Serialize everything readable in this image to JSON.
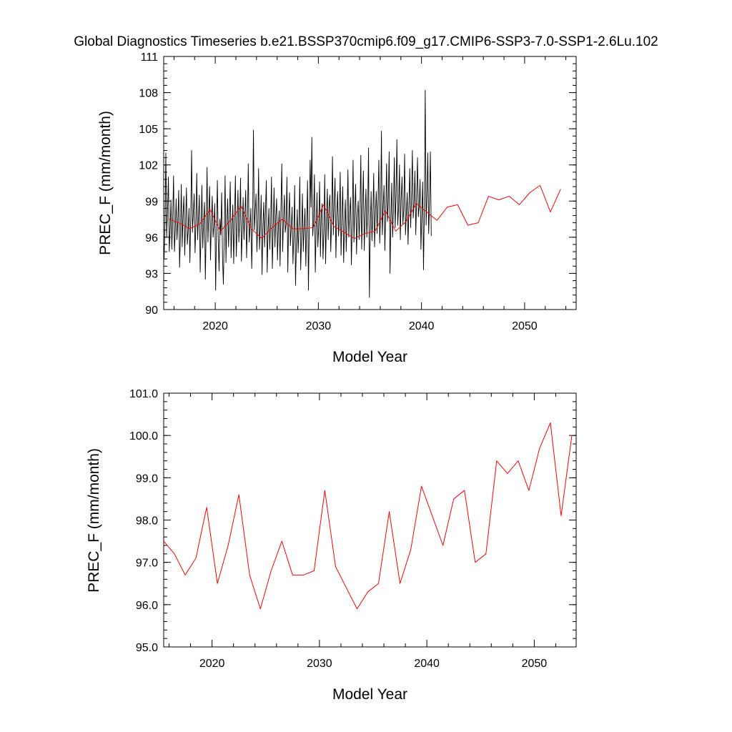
{
  "title": "Global Diagnostics Timeseries b.e21.BSSP370cmip6.f09_g17.CMIP6-SSP3-7.0-SSP1-2.6Lu.102",
  "colors": {
    "monthly": "#000000",
    "annual": "#ff0000"
  },
  "chart_data": [
    {
      "type": "line",
      "ylabel": "PREC_F (mm/month)",
      "xlabel": "Model Year",
      "xlim": [
        2015,
        2055
      ],
      "ylim": [
        90,
        111
      ],
      "xticks": [
        2020,
        2030,
        2040,
        2050
      ],
      "xtick_labels": [
        "2020",
        "2030",
        "2040",
        "2050"
      ],
      "yticks": [
        90,
        93,
        96,
        99,
        102,
        105,
        108,
        111
      ],
      "ytick_labels": [
        "90",
        "93",
        "96",
        "99",
        "102",
        "105",
        "108",
        "111"
      ],
      "series": [
        {
          "name": "monthly",
          "color": "#000000",
          "x_start": 2015.04,
          "x_step": 0.0833,
          "values": [
            94.2,
            97.1,
            103.0,
            96.0,
            98.3,
            101.0,
            94.8,
            96.6,
            99.1,
            95.0,
            97.7,
            101.1,
            94.8,
            96.5,
            99.2,
            95.8,
            97.4,
            99.9,
            93.5,
            96.2,
            100.4,
            95.2,
            97.8,
            99.4,
            94.5,
            97.3,
            100.1,
            95.4,
            96.6,
            98.4,
            93.9,
            97.6,
            103.2,
            96.4,
            98.0,
            99.6,
            94.7,
            97.1,
            101.3,
            95.8,
            97.6,
            99.5,
            93.1,
            96.5,
            100.3,
            95.1,
            97.3,
            98.9,
            92.5,
            96.8,
            101.8,
            95.6,
            98.0,
            100.2,
            94.1,
            97.2,
            99.4,
            96.0,
            97.0,
            98.8,
            91.6,
            96.5,
            100.7,
            95.8,
            93.2,
            97.5,
            96.2,
            99.7,
            94.3,
            92.1,
            96.3,
            101.1,
            93.9,
            97.3,
            99.2,
            95.2,
            97.6,
            100.6,
            94.3,
            96.8,
            98.7,
            93.8,
            97.6,
            101.1,
            94.4,
            97.0,
            99.9,
            95.6,
            97.4,
            100.9,
            94.0,
            96.6,
            99.3,
            95.8,
            97.8,
            99.9,
            94.3,
            97.2,
            102.1,
            95.6,
            96.8,
            98.4,
            93.4,
            97.0,
            104.9,
            96.6,
            98.1,
            99.6,
            94.8,
            97.0,
            101.7,
            95.0,
            96.9,
            99.5,
            92.9,
            96.8,
            98.9,
            95.2,
            98.2,
            100.7,
            93.1,
            96.5,
            98.4,
            95.0,
            97.1,
            101.0,
            93.4,
            96.7,
            100.1,
            95.2,
            97.7,
            99.2,
            94.1,
            96.8,
            98.2,
            93.6,
            98.3,
            102.1,
            94.8,
            97.4,
            99.5,
            96.4,
            97.1,
            101.0,
            93.1,
            97.4,
            99.7,
            95.3,
            96.8,
            98.5,
            93.8,
            96.1,
            100.3,
            92.0,
            95.4,
            98.3,
            94.7,
            97.0,
            101.0,
            93.3,
            96.0,
            99.6,
            94.8,
            96.9,
            98.4,
            93.6,
            97.3,
            100.7,
            91.6,
            96.9,
            102.4,
            98.5,
            104.3,
            96.1,
            97.3,
            101.2,
            93.1,
            96.6,
            99.7,
            95.2,
            97.0,
            100.6,
            94.4,
            97.9,
            98.8,
            94.2,
            96.5,
            101.2,
            93.8,
            97.5,
            100.0,
            95.8,
            98.5,
            99.5,
            94.8,
            97.4,
            102.7,
            96.2,
            98.9,
            100.9,
            94.3,
            97.8,
            99.8,
            96.1,
            97.3,
            101.4,
            94.5,
            97.7,
            100.2,
            93.9,
            96.9,
            99.1,
            94.8,
            97.6,
            101.6,
            96.0,
            98.0,
            99.3,
            93.7,
            97.1,
            102.4,
            95.6,
            98.5,
            100.4,
            94.6,
            97.7,
            99.0,
            95.8,
            97.9,
            102.8,
            95.0,
            98.5,
            101.5,
            94.9,
            97.8,
            100.0,
            96.0,
            98.1,
            103.4,
            91.0,
            96.3,
            99.8,
            95.7,
            97.8,
            101.3,
            95.2,
            98.0,
            99.8,
            96.3,
            98.9,
            102.4,
            95.5,
            97.7,
            104.8,
            96.2,
            98.5,
            100.3,
            94.9,
            98.0,
            102.1,
            97.3,
            99.0,
            103.1,
            93.0,
            97.5,
            100.5,
            96.0,
            98.3,
            102.6,
            96.8,
            99.6,
            104.1,
            97.0,
            98.5,
            102.0,
            95.8,
            99.2,
            101.0,
            97.1,
            98.3,
            102.9,
            96.2,
            97.9,
            99.7,
            95.4,
            98.6,
            101.7,
            96.8,
            99.1,
            103.2,
            97.6,
            98.9,
            101.5,
            96.2,
            99.4,
            102.6,
            97.7,
            98.6,
            100.8,
            95.0,
            97.9,
            100.6,
            93.3,
            98.4,
            108.2,
            97.0,
            99.6,
            103.0,
            96.3,
            98.9,
            103.1,
            96.1
          ]
        },
        {
          "name": "annual",
          "color": "#ff0000",
          "x": [
            2015.5,
            2016.5,
            2017.5,
            2018.5,
            2019.5,
            2020.5,
            2021.5,
            2022.5,
            2023.5,
            2024.5,
            2025.5,
            2026.5,
            2027.5,
            2028.5,
            2029.5,
            2030.5,
            2031.5,
            2032.5,
            2033.5,
            2034.5,
            2035.5,
            2036.5,
            2037.5,
            2038.5,
            2039.5,
            2040.5,
            2041.5,
            2042.5,
            2043.5,
            2044.5,
            2045.5,
            2046.5,
            2047.5,
            2048.5,
            2049.5,
            2050.5,
            2051.5,
            2052.5,
            2053.5
          ],
          "values": [
            97.5,
            97.2,
            96.7,
            97.1,
            98.3,
            96.5,
            97.4,
            98.6,
            96.7,
            95.9,
            96.8,
            97.5,
            96.7,
            96.7,
            96.8,
            98.7,
            96.9,
            96.4,
            95.9,
            96.3,
            96.5,
            98.2,
            96.5,
            97.3,
            98.8,
            98.1,
            97.4,
            98.5,
            98.7,
            97.0,
            97.2,
            99.4,
            99.1,
            99.4,
            98.7,
            99.7,
            100.3,
            98.1,
            100.0
          ]
        }
      ]
    },
    {
      "type": "line",
      "ylabel": "PREC_F (mm/month)",
      "xlabel": "Model Year",
      "xlim": [
        2015.5,
        2053.9
      ],
      "ylim": [
        95.0,
        101.0
      ],
      "xticks": [
        2020,
        2030,
        2040,
        2050
      ],
      "xtick_labels": [
        "2020",
        "2030",
        "2040",
        "2050"
      ],
      "yticks": [
        95,
        96,
        97,
        98,
        99,
        100,
        101
      ],
      "ytick_labels": [
        "95.0",
        "96.0",
        "97.0",
        "98.0",
        "99.0",
        "100.0",
        "101.0"
      ],
      "series": [
        {
          "name": "annual",
          "color": "#ff0000",
          "x": [
            2015.5,
            2016.5,
            2017.5,
            2018.5,
            2019.5,
            2020.5,
            2021.5,
            2022.5,
            2023.5,
            2024.5,
            2025.5,
            2026.5,
            2027.5,
            2028.5,
            2029.5,
            2030.5,
            2031.5,
            2032.5,
            2033.5,
            2034.5,
            2035.5,
            2036.5,
            2037.5,
            2038.5,
            2039.5,
            2040.5,
            2041.5,
            2042.5,
            2043.5,
            2044.5,
            2045.5,
            2046.5,
            2047.5,
            2048.5,
            2049.5,
            2050.5,
            2051.5,
            2052.5,
            2053.5
          ],
          "values": [
            97.5,
            97.2,
            96.7,
            97.1,
            98.3,
            96.5,
            97.4,
            98.6,
            96.7,
            95.9,
            96.8,
            97.5,
            96.7,
            96.7,
            96.8,
            98.7,
            96.9,
            96.4,
            95.9,
            96.3,
            96.5,
            98.2,
            96.5,
            97.3,
            98.8,
            98.1,
            97.4,
            98.5,
            98.7,
            97.0,
            97.2,
            99.4,
            99.1,
            99.4,
            98.7,
            99.7,
            100.3,
            98.1,
            100.0
          ]
        }
      ]
    }
  ]
}
